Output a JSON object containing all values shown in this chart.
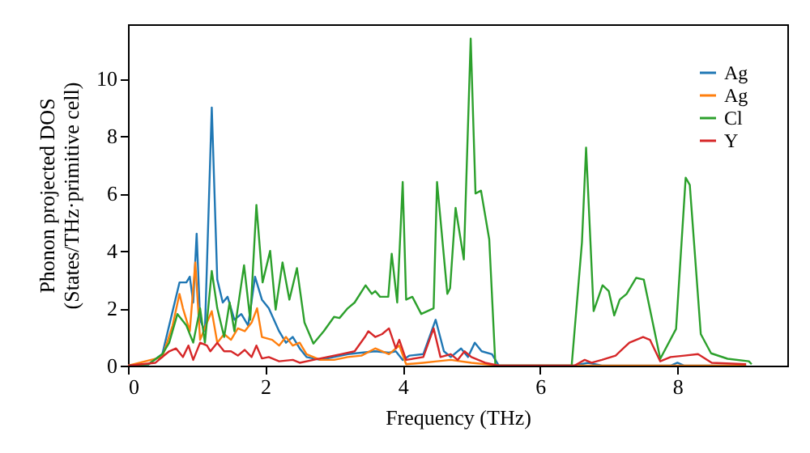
{
  "chart_data": {
    "type": "line",
    "xlabel": "Frequency (THz)",
    "ylabel": "Phonon projected DOS\n(States/THz·primitive cell)",
    "xlim": [
      0,
      9.6
    ],
    "xticks": [
      0,
      2,
      4,
      6,
      8
    ],
    "ylim": [
      0,
      11.9
    ],
    "yticks": [
      0,
      2,
      4,
      6,
      8,
      10
    ],
    "grid": false,
    "legend": "top right",
    "series": [
      {
        "name": "Ag",
        "color": "#1f77b4",
        "x": [
          0,
          0.3,
          0.5,
          0.65,
          0.75,
          0.85,
          0.9,
          0.95,
          1.0,
          1.05,
          1.12,
          1.22,
          1.3,
          1.38,
          1.45,
          1.55,
          1.65,
          1.75,
          1.85,
          1.95,
          2.05,
          2.2,
          2.3,
          2.4,
          2.5,
          2.6,
          2.8,
          3.0,
          3.2,
          3.4,
          3.6,
          3.8,
          3.9,
          4.0,
          4.1,
          4.3,
          4.48,
          4.6,
          4.7,
          4.85,
          4.95,
          5.05,
          5.15,
          5.3,
          5.4,
          6.5,
          6.7,
          6.9,
          7.9,
          8.0,
          8.1,
          9.0
        ],
        "values": [
          0,
          0.05,
          0.4,
          1.9,
          2.9,
          2.9,
          3.1,
          2.2,
          4.6,
          1.6,
          1.2,
          9.0,
          3.0,
          2.2,
          2.4,
          1.6,
          1.8,
          1.4,
          3.1,
          2.3,
          2.0,
          1.2,
          0.8,
          1.0,
          0.6,
          0.3,
          0.2,
          0.3,
          0.4,
          0.45,
          0.5,
          0.45,
          0.5,
          0.2,
          0.35,
          0.4,
          1.6,
          0.5,
          0.3,
          0.6,
          0.3,
          0.8,
          0.5,
          0.4,
          0,
          0,
          0.1,
          0,
          0,
          0.1,
          0,
          0
        ]
      },
      {
        "name": "Ag",
        "color": "#ff7f0e",
        "x": [
          0,
          0.5,
          0.65,
          0.75,
          0.8,
          0.9,
          0.98,
          1.05,
          1.15,
          1.22,
          1.3,
          1.4,
          1.5,
          1.6,
          1.7,
          1.8,
          1.88,
          1.95,
          2.1,
          2.2,
          2.3,
          2.4,
          2.5,
          2.6,
          2.8,
          3.0,
          3.2,
          3.4,
          3.6,
          3.8,
          3.95,
          4.05,
          4.3,
          4.5,
          4.7,
          5.0,
          5.4,
          9.0
        ],
        "values": [
          0,
          0.3,
          1.4,
          2.5,
          2.0,
          1.2,
          3.6,
          0.9,
          1.5,
          1.9,
          0.8,
          1.1,
          0.9,
          1.3,
          1.2,
          1.5,
          2.0,
          1.0,
          0.9,
          0.7,
          1.0,
          0.7,
          0.8,
          0.4,
          0.2,
          0.2,
          0.3,
          0.35,
          0.6,
          0.4,
          0.7,
          0.05,
          0.1,
          0.15,
          0.2,
          0.1,
          0,
          0
        ]
      },
      {
        "name": "Cl",
        "color": "#2ca02c",
        "x": [
          0,
          0.3,
          0.5,
          0.6,
          0.72,
          0.85,
          0.95,
          1.05,
          1.12,
          1.22,
          1.3,
          1.4,
          1.48,
          1.55,
          1.69,
          1.78,
          1.87,
          1.96,
          2.07,
          2.15,
          2.25,
          2.35,
          2.46,
          2.57,
          2.7,
          2.85,
          3.0,
          3.08,
          3.2,
          3.3,
          3.46,
          3.55,
          3.6,
          3.67,
          3.79,
          3.84,
          3.92,
          4.0,
          4.05,
          4.14,
          4.27,
          4.45,
          4.5,
          4.65,
          4.69,
          4.77,
          4.89,
          4.99,
          5.06,
          5.14,
          5.26,
          5.35,
          6.46,
          6.61,
          6.67,
          6.78,
          6.91,
          7.0,
          7.08,
          7.16,
          7.26,
          7.4,
          7.51,
          7.75,
          7.98,
          8.12,
          8.18,
          8.34,
          8.49,
          8.73,
          9.04,
          9.08
        ],
        "values": [
          0,
          0.05,
          0.4,
          0.8,
          1.8,
          1.4,
          0.8,
          2.0,
          0.8,
          3.3,
          2.0,
          1.0,
          2.2,
          1.2,
          3.5,
          1.6,
          5.6,
          2.9,
          4.0,
          1.95,
          3.6,
          2.3,
          3.4,
          1.5,
          0.77,
          1.2,
          1.7,
          1.66,
          2.0,
          2.2,
          2.8,
          2.5,
          2.6,
          2.4,
          2.4,
          3.9,
          2.2,
          6.4,
          2.3,
          2.4,
          1.8,
          2.0,
          6.4,
          2.5,
          2.7,
          5.5,
          3.7,
          11.4,
          6.0,
          6.1,
          4.4,
          0,
          0,
          4.3,
          7.6,
          1.9,
          2.8,
          2.6,
          1.75,
          2.3,
          2.5,
          3.06,
          3.0,
          0.24,
          1.28,
          6.55,
          6.3,
          1.1,
          0.43,
          0.24,
          0.15,
          0.05
        ]
      },
      {
        "name": "Y",
        "color": "#d62728",
        "x": [
          0,
          0.4,
          0.6,
          0.7,
          0.8,
          0.88,
          0.95,
          1.05,
          1.15,
          1.2,
          1.3,
          1.4,
          1.5,
          1.6,
          1.7,
          1.8,
          1.87,
          1.95,
          2.05,
          2.2,
          2.4,
          2.5,
          2.7,
          2.9,
          3.1,
          3.3,
          3.45,
          3.5,
          3.6,
          3.7,
          3.8,
          3.9,
          3.95,
          4.05,
          4.3,
          4.45,
          4.55,
          4.7,
          4.8,
          4.9,
          5.0,
          5.2,
          5.4,
          6.5,
          6.65,
          6.75,
          6.9,
          7.1,
          7.3,
          7.5,
          7.6,
          7.75,
          7.9,
          8.1,
          8.3,
          8.5,
          9.0
        ],
        "values": [
          0,
          0.1,
          0.5,
          0.6,
          0.3,
          0.7,
          0.2,
          0.8,
          0.7,
          0.5,
          0.8,
          0.5,
          0.5,
          0.35,
          0.55,
          0.3,
          0.7,
          0.25,
          0.3,
          0.15,
          0.2,
          0.1,
          0.2,
          0.3,
          0.4,
          0.5,
          1.0,
          1.2,
          1.0,
          1.1,
          1.3,
          0.6,
          0.9,
          0.2,
          0.3,
          1.3,
          0.3,
          0.4,
          0.2,
          0.5,
          0.3,
          0.1,
          0,
          0,
          0.2,
          0.1,
          0.2,
          0.35,
          0.8,
          1.0,
          0.9,
          0.15,
          0.3,
          0.35,
          0.4,
          0.1,
          0.05
        ]
      }
    ]
  }
}
